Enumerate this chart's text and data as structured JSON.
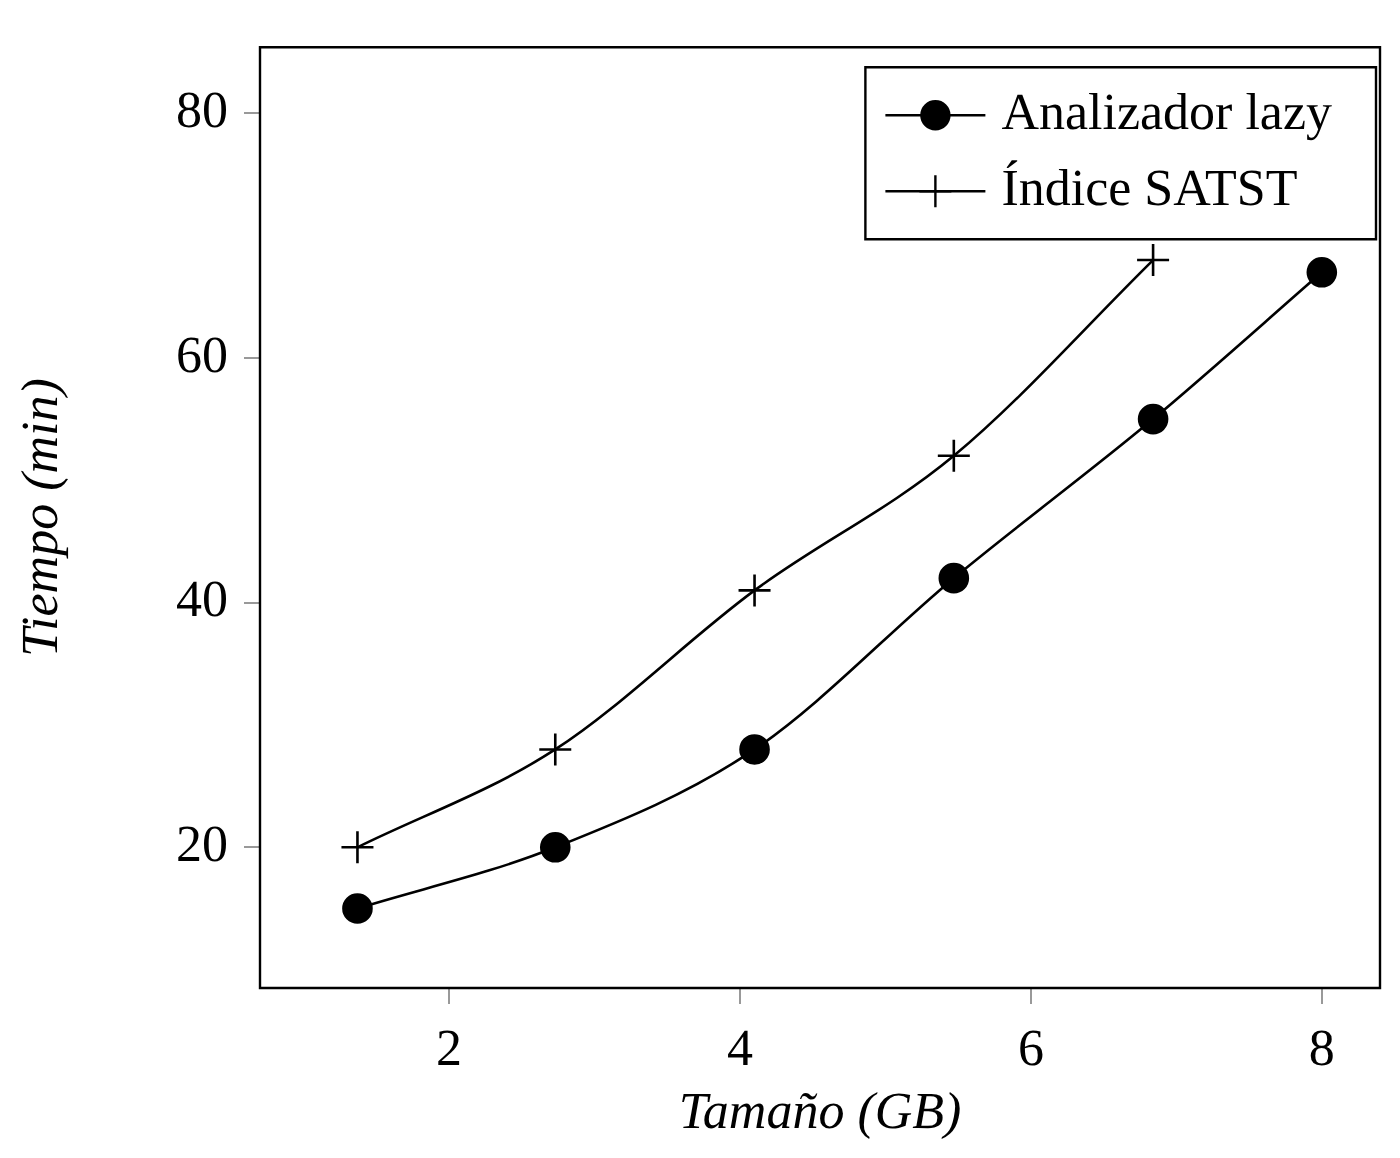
{
  "chart_data": {
    "type": "line",
    "xlabel": "Tamaño (GB)",
    "ylabel": "Tiempo (min)",
    "x": [
      1.37,
      2.73,
      4.1,
      5.47,
      6.84,
      8.0
    ],
    "series": [
      {
        "name": "Analizador lazy",
        "color": "#000000",
        "marker": "circle",
        "values": [
          15,
          20,
          28,
          42,
          55,
          67
        ]
      },
      {
        "name": "Índice SATST",
        "color": "#000000",
        "marker": "cross",
        "values": [
          20,
          28,
          41,
          52,
          68,
          null
        ]
      }
    ],
    "xlim": [
      0.7,
      8.4
    ],
    "xticks": [
      2,
      4,
      6,
      8
    ],
    "ylim": [
      8.5,
      85.4
    ],
    "yticks": [
      20,
      40,
      60,
      80
    ],
    "grid": false,
    "legend": "top right"
  }
}
